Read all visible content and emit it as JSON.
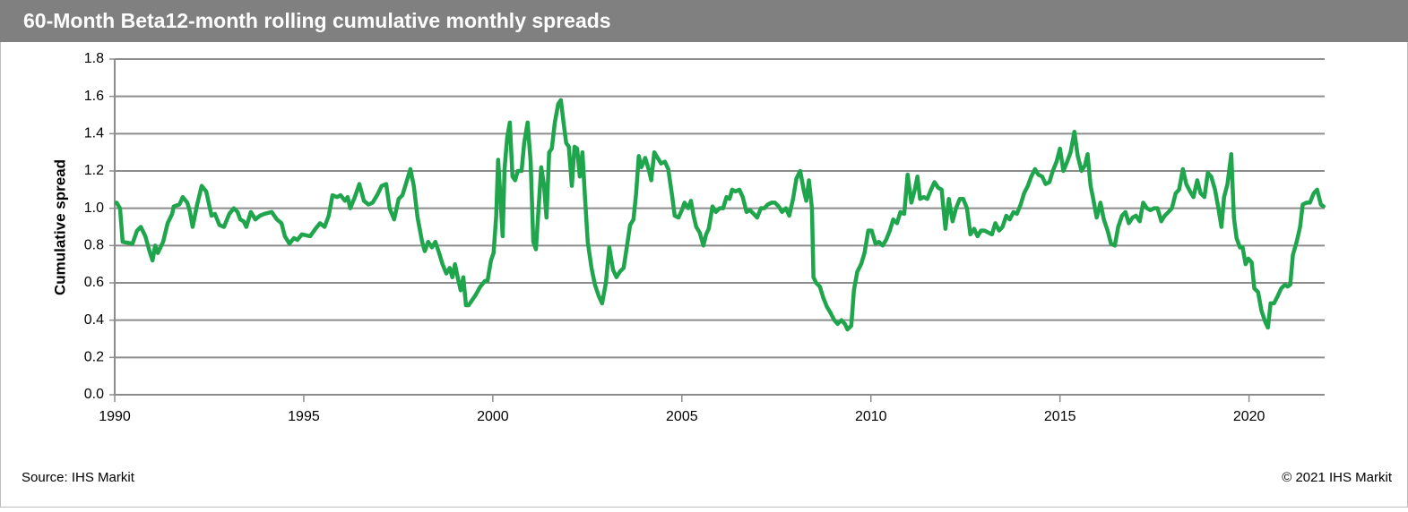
{
  "chart_data": {
    "type": "line",
    "title": "60-Month Beta12-month rolling cumulative monthly spreads",
    "y_label": "Cumulative spread",
    "source": "Source: IHS Markit",
    "copyright": "© 2021 IHS Markit",
    "xlim": [
      1990,
      2022
    ],
    "xticks": [
      1990,
      1995,
      2000,
      2005,
      2010,
      2015,
      2020
    ],
    "ylim": [
      0,
      1.8
    ],
    "yticks": [
      {
        "value": 0,
        "label": "0.0"
      },
      0.2,
      0.4,
      0.6,
      0.8,
      {
        "value": 1,
        "label": "1.0"
      },
      1.2,
      1.4,
      1.6,
      1.8
    ],
    "grid": true,
    "series": [
      {
        "name": "Cumulative spread",
        "color": "#1fa54b",
        "x": [
          1990.05,
          1990.14,
          1990.21,
          1990.47,
          1990.59,
          1990.69,
          1990.81,
          1990.92,
          1991.0,
          1991.07,
          1991.14,
          1991.28,
          1991.4,
          1991.52,
          1991.56,
          1991.71,
          1991.8,
          1991.92,
          1991.99,
          1992.06,
          1992.18,
          1992.3,
          1992.42,
          1992.56,
          1992.65,
          1992.77,
          1992.89,
          1993.03,
          1993.15,
          1993.25,
          1993.32,
          1993.41,
          1993.48,
          1993.6,
          1993.72,
          1993.84,
          1993.96,
          1994.15,
          1994.29,
          1994.41,
          1994.5,
          1994.62,
          1994.74,
          1994.83,
          1994.95,
          1995.17,
          1995.31,
          1995.43,
          1995.55,
          1995.66,
          1995.76,
          1995.88,
          1995.97,
          1996.09,
          1996.16,
          1996.23,
          1996.35,
          1996.47,
          1996.59,
          1996.71,
          1996.82,
          1996.94,
          1997.06,
          1997.18,
          1997.27,
          1997.39,
          1997.51,
          1997.61,
          1997.73,
          1997.82,
          1997.91,
          1998.01,
          1998.13,
          1998.2,
          1998.29,
          1998.39,
          1998.48,
          1998.58,
          1998.67,
          1998.77,
          1998.86,
          1998.93,
          1999.0,
          1999.08,
          1999.15,
          1999.22,
          1999.29,
          1999.36,
          1999.53,
          1999.67,
          1999.79,
          1999.86,
          1999.95,
          2000.02,
          2000.09,
          2000.14,
          2000.19,
          2000.26,
          2000.31,
          2000.38,
          2000.45,
          2000.52,
          2000.59,
          2000.66,
          2000.76,
          2000.83,
          2000.92,
          2001.0,
          2001.07,
          2001.14,
          2001.21,
          2001.28,
          2001.35,
          2001.42,
          2001.49,
          2001.56,
          2001.64,
          2001.73,
          2001.8,
          2001.87,
          2001.94,
          2002.01,
          2002.09,
          2002.16,
          2002.23,
          2002.3,
          2002.37,
          2002.44,
          2002.51,
          2002.61,
          2002.7,
          2002.8,
          2002.89,
          2002.99,
          2003.08,
          2003.18,
          2003.27,
          2003.36,
          2003.46,
          2003.55,
          2003.63,
          2003.72,
          2003.79,
          2003.86,
          2003.93,
          2004.03,
          2004.12,
          2004.19,
          2004.27,
          2004.36,
          2004.45,
          2004.55,
          2004.64,
          2004.74,
          2004.81,
          2004.91,
          2005.0,
          2005.07,
          2005.17,
          2005.24,
          2005.31,
          2005.38,
          2005.47,
          2005.57,
          2005.64,
          2005.71,
          2005.81,
          2005.9,
          2006.0,
          2006.09,
          2006.18,
          2006.26,
          2006.33,
          2006.42,
          2006.52,
          2006.61,
          2006.71,
          2006.8,
          2006.9,
          2006.99,
          2007.09,
          2007.18,
          2007.27,
          2007.37,
          2007.46,
          2007.56,
          2007.65,
          2007.75,
          2007.84,
          2007.94,
          2008.03,
          2008.13,
          2008.22,
          2008.29,
          2008.36,
          2008.44,
          2008.48,
          2008.55,
          2008.65,
          2008.74,
          2008.84,
          2008.93,
          2009.03,
          2009.12,
          2009.22,
          2009.31,
          2009.38,
          2009.48,
          2009.55,
          2009.64,
          2009.74,
          2009.83,
          2009.93,
          2010.02,
          2010.12,
          2010.21,
          2010.31,
          2010.4,
          2010.5,
          2010.59,
          2010.69,
          2010.78,
          2010.88,
          2010.97,
          2011.07,
          2011.16,
          2011.23,
          2011.3,
          2011.4,
          2011.49,
          2011.59,
          2011.68,
          2011.78,
          2011.87,
          2011.97,
          2012.06,
          2012.16,
          2012.25,
          2012.35,
          2012.44,
          2012.54,
          2012.63,
          2012.73,
          2012.82,
          2012.91,
          2013.01,
          2013.1,
          2013.2,
          2013.29,
          2013.39,
          2013.48,
          2013.58,
          2013.67,
          2013.77,
          2013.86,
          2013.96,
          2014.05,
          2014.15,
          2014.24,
          2014.34,
          2014.43,
          2014.53,
          2014.62,
          2014.72,
          2014.81,
          2014.91,
          2015.0,
          2015.09,
          2015.19,
          2015.28,
          2015.38,
          2015.47,
          2015.57,
          2015.66,
          2015.73,
          2015.81,
          2015.88,
          2015.97,
          2016.07,
          2016.16,
          2016.26,
          2016.35,
          2016.45,
          2016.54,
          2016.64,
          2016.73,
          2016.82,
          2016.92,
          2017.01,
          2017.11,
          2017.2,
          2017.3,
          2017.39,
          2017.49,
          2017.58,
          2017.68,
          2017.77,
          2017.87,
          2017.96,
          2018.06,
          2018.15,
          2018.25,
          2018.34,
          2018.44,
          2018.53,
          2018.63,
          2018.72,
          2018.82,
          2018.91,
          2019.0,
          2019.1,
          2019.19,
          2019.27,
          2019.34,
          2019.43,
          2019.53,
          2019.6,
          2019.67,
          2019.76,
          2019.83,
          2019.91,
          2019.98,
          2020.07,
          2020.14,
          2020.24,
          2020.33,
          2020.43,
          2020.5,
          2020.57,
          2020.66,
          2020.76,
          2020.85,
          2020.95,
          2021.02,
          2021.09,
          2021.16,
          2021.26,
          2021.35,
          2021.42,
          2021.52,
          2021.61,
          2021.71,
          2021.8,
          2021.9,
          2021.97
        ],
        "values": [
          1.03,
          1.0,
          0.82,
          0.81,
          0.88,
          0.9,
          0.85,
          0.77,
          0.72,
          0.8,
          0.76,
          0.82,
          0.92,
          0.97,
          1.01,
          1.02,
          1.06,
          1.03,
          0.98,
          0.9,
          1.02,
          1.12,
          1.09,
          0.96,
          0.97,
          0.91,
          0.9,
          0.97,
          1.0,
          0.98,
          0.94,
          0.93,
          0.9,
          0.98,
          0.94,
          0.96,
          0.97,
          0.98,
          0.94,
          0.92,
          0.85,
          0.81,
          0.84,
          0.83,
          0.86,
          0.85,
          0.89,
          0.92,
          0.9,
          0.96,
          1.07,
          1.06,
          1.07,
          1.04,
          1.06,
          1.0,
          1.06,
          1.13,
          1.04,
          1.02,
          1.03,
          1.07,
          1.12,
          1.13,
          1.0,
          0.94,
          1.05,
          1.07,
          1.15,
          1.21,
          1.12,
          0.95,
          0.82,
          0.77,
          0.82,
          0.79,
          0.82,
          0.76,
          0.7,
          0.65,
          0.68,
          0.63,
          0.7,
          0.62,
          0.56,
          0.63,
          0.48,
          0.48,
          0.53,
          0.58,
          0.61,
          0.61,
          0.72,
          0.76,
          0.96,
          1.26,
          1.1,
          0.85,
          1.21,
          1.38,
          1.46,
          1.17,
          1.15,
          1.2,
          1.2,
          1.35,
          1.46,
          1.25,
          0.82,
          0.78,
          1.0,
          1.22,
          1.13,
          0.95,
          1.3,
          1.32,
          1.46,
          1.56,
          1.58,
          1.46,
          1.35,
          1.33,
          1.12,
          1.33,
          1.32,
          1.17,
          1.3,
          1.05,
          0.82,
          0.68,
          0.59,
          0.53,
          0.49,
          0.6,
          0.79,
          0.67,
          0.63,
          0.66,
          0.68,
          0.8,
          0.91,
          0.94,
          1.08,
          1.28,
          1.22,
          1.27,
          1.21,
          1.15,
          1.3,
          1.27,
          1.24,
          1.25,
          1.21,
          1.07,
          0.96,
          0.95,
          0.99,
          1.03,
          1.0,
          1.04,
          0.96,
          0.9,
          0.87,
          0.8,
          0.86,
          0.89,
          1.01,
          0.98,
          1.0,
          1.0,
          1.06,
          1.05,
          1.1,
          1.09,
          1.1,
          1.06,
          0.98,
          0.99,
          0.97,
          0.95,
          1.0,
          1.0,
          1.02,
          1.03,
          1.03,
          1.01,
          0.98,
          1.0,
          0.96,
          1.05,
          1.16,
          1.2,
          1.1,
          1.04,
          1.15,
          1.0,
          0.63,
          0.6,
          0.58,
          0.52,
          0.47,
          0.44,
          0.4,
          0.38,
          0.4,
          0.38,
          0.35,
          0.37,
          0.56,
          0.66,
          0.7,
          0.76,
          0.88,
          0.88,
          0.81,
          0.82,
          0.8,
          0.83,
          0.88,
          0.94,
          0.92,
          0.98,
          0.97,
          1.18,
          1.03,
          1.1,
          1.17,
          1.05,
          1.06,
          1.05,
          1.1,
          1.14,
          1.11,
          1.1,
          0.89,
          1.05,
          0.93,
          1.0,
          1.05,
          1.05,
          1.0,
          0.86,
          0.89,
          0.85,
          0.88,
          0.88,
          0.87,
          0.86,
          0.92,
          0.88,
          0.9,
          0.96,
          0.94,
          0.98,
          0.97,
          1.02,
          1.08,
          1.12,
          1.17,
          1.21,
          1.18,
          1.17,
          1.13,
          1.14,
          1.2,
          1.25,
          1.32,
          1.2,
          1.25,
          1.3,
          1.41,
          1.28,
          1.2,
          1.23,
          1.29,
          1.12,
          1.05,
          0.95,
          1.03,
          0.94,
          0.88,
          0.81,
          0.8,
          0.9,
          0.96,
          0.98,
          0.92,
          0.95,
          0.96,
          0.93,
          1.03,
          1.0,
          0.99,
          1.0,
          1.0,
          0.93,
          0.96,
          0.98,
          1.0,
          1.08,
          1.1,
          1.21,
          1.13,
          1.09,
          1.06,
          1.15,
          1.08,
          1.06,
          1.19,
          1.17,
          1.1,
          1.0,
          0.9,
          1.06,
          1.13,
          1.29,
          0.95,
          0.84,
          0.79,
          0.79,
          0.7,
          0.73,
          0.71,
          0.57,
          0.55,
          0.45,
          0.39,
          0.36,
          0.49,
          0.49,
          0.53,
          0.57,
          0.59,
          0.58,
          0.59,
          0.75,
          0.82,
          0.9,
          1.02,
          1.03,
          1.03,
          1.08,
          1.1,
          1.02,
          1.01
        ]
      }
    ]
  }
}
